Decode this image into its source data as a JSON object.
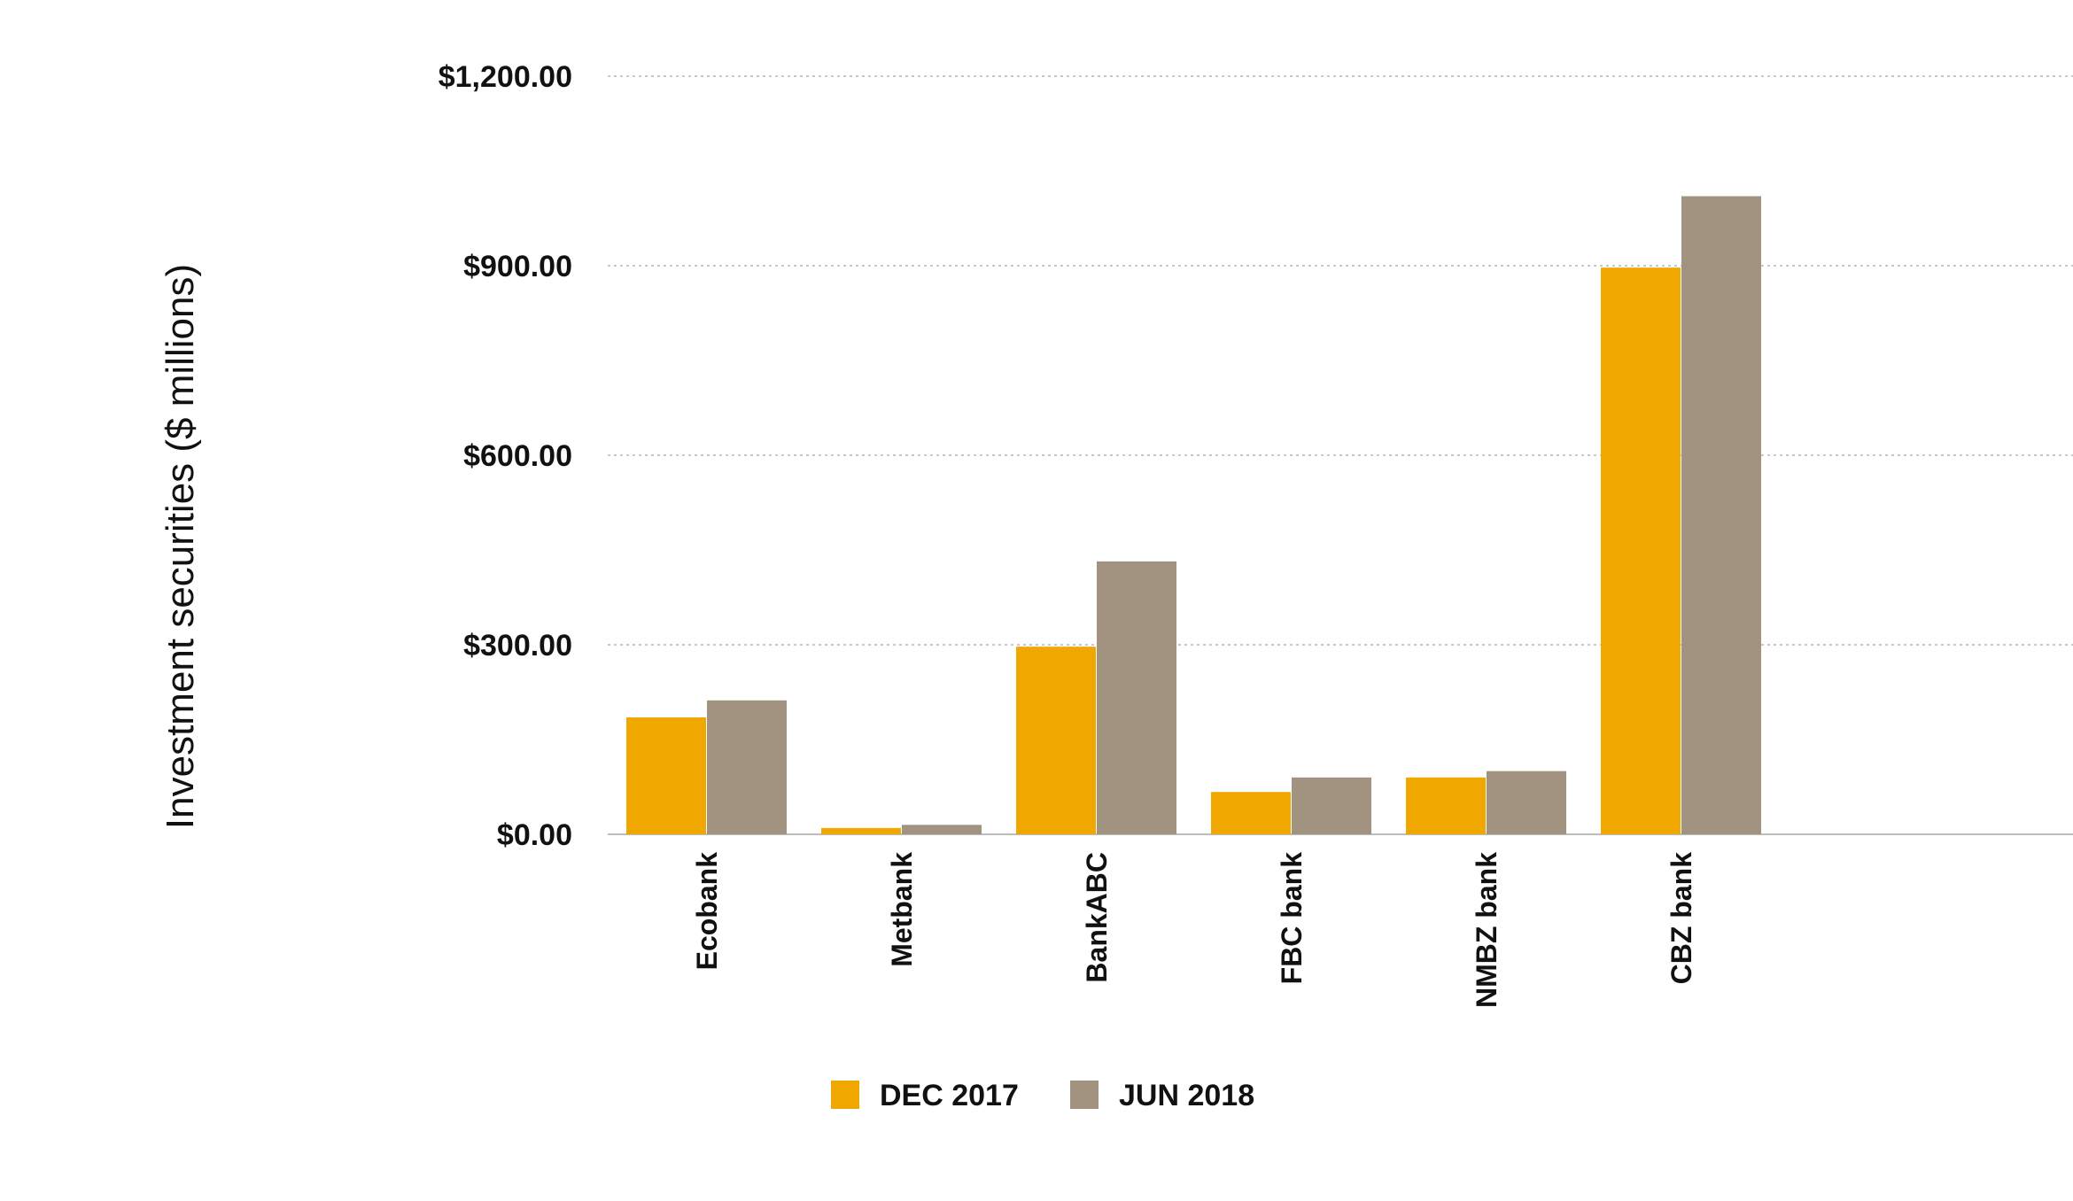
{
  "chart_data": {
    "type": "bar",
    "title": "",
    "xlabel": "",
    "ylabel": "Investment securities ($ millions)",
    "categories": [
      "Ecobank",
      "Metbank",
      "BankABC",
      "FBC bank",
      "NMBZ bank",
      "CBZ bank"
    ],
    "series": [
      {
        "name": "DEC 2017",
        "color": "#F0A800",
        "values": [
          185,
          10,
          297,
          67,
          90,
          897
        ]
      },
      {
        "name": "JUN 2018",
        "color": "#A29380",
        "values": [
          212,
          15,
          432,
          90,
          100,
          1010
        ]
      }
    ],
    "ylim": [
      0,
      1200
    ],
    "yticks": [
      0,
      300,
      600,
      900,
      1200
    ],
    "ytick_labels": [
      "$0.00",
      "$300.00",
      "$600.00",
      "$900.00",
      "$1,200.00"
    ],
    "grid": true,
    "legend_position": "bottom"
  }
}
